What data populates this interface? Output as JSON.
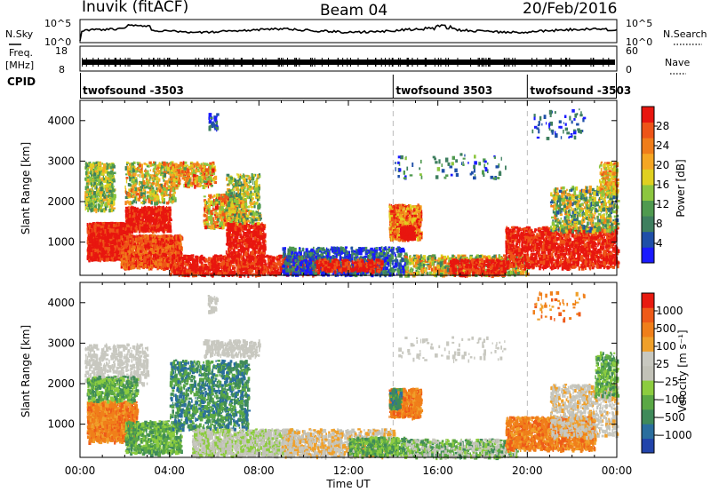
{
  "header": {
    "station": "Inuvik (fitACF)",
    "beam": "Beam 04",
    "date": "20/Feb/2016"
  },
  "noise_panel": {
    "left_label": "N.Sky",
    "right_label": "N.Search",
    "left_ticks": [
      "10^5",
      "10^0"
    ],
    "right_ticks": [
      "10^5",
      "10^0"
    ]
  },
  "freq_panel": {
    "left_label_1": "Freq.",
    "left_label_2": "[MHz]",
    "right_label": "Nave",
    "left_ticks": [
      "18",
      "8"
    ],
    "right_ticks": [
      "60",
      "0"
    ]
  },
  "cpid": {
    "label": "CPID",
    "segments": [
      {
        "start_hour": 0,
        "end_hour": 14,
        "name": "twofsound -3503"
      },
      {
        "start_hour": 14,
        "end_hour": 20,
        "name": "twofsound 3503"
      },
      {
        "start_hour": 20,
        "end_hour": 24,
        "name": "twofsound -3503"
      }
    ]
  },
  "chart_data": [
    {
      "type": "heatmap",
      "parameter": "Power",
      "ylabel": "Slant Range [km]",
      "yticks": [
        "4000",
        "3000",
        "2000",
        "1000"
      ],
      "ylim": [
        180,
        4500
      ],
      "xlim": [
        0,
        24
      ],
      "colorbar": {
        "label": "Power [dB]",
        "ticks": [
          "28",
          "24",
          "20",
          "16",
          "12",
          "8",
          "4"
        ],
        "tick_values": [
          28,
          24,
          20,
          16,
          12,
          8,
          4
        ],
        "range": [
          0,
          32
        ],
        "colors": [
          "#1a1aff",
          "#1f4fa8",
          "#3e7f5f",
          "#4f9a4f",
          "#8cc63f",
          "#e0d020",
          "#f5a623",
          "#f07d1a",
          "#ee5418",
          "#e8160f"
        ]
      },
      "boundary_hours": [
        14,
        20
      ]
    },
    {
      "type": "heatmap",
      "parameter": "Velocity",
      "ylabel": "Slant Range [km]",
      "yticks": [
        "4000",
        "3000",
        "2000",
        "1000"
      ],
      "ylim": [
        180,
        4500
      ],
      "xlim": [
        0,
        24
      ],
      "colorbar": {
        "label": "Velocity [m s⁻¹]",
        "ticks": [
          "1000",
          "500",
          "100",
          "25",
          "−25",
          "−100",
          "−500",
          "−1000"
        ],
        "colors": [
          "#2244aa",
          "#2a6e9e",
          "#3f8a5a",
          "#5aa845",
          "#8ccc3f",
          "#c2c2b8",
          "#c8c8c0",
          "#f0a02a",
          "#f07f1a",
          "#ee5a18",
          "#e81a10"
        ]
      },
      "boundary_hours": [
        14,
        20
      ]
    }
  ],
  "xaxis": {
    "ticks": [
      "00:00",
      "04:00",
      "08:00",
      "12:00",
      "16:00",
      "20:00",
      "00:00"
    ],
    "label": "Time UT"
  }
}
